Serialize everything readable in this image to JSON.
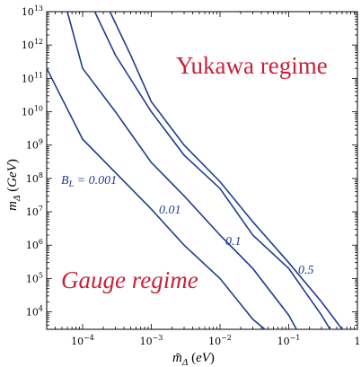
{
  "chart_data": {
    "type": "line",
    "xscale": "log",
    "yscale": "log",
    "xlim": [
      3e-05,
      1
    ],
    "ylim": [
      3000,
      10000000000000
    ],
    "xlabel": "m̃Δ (eV)",
    "ylabel": "mΔ (GeV)",
    "x_ticks": [
      {
        "value": 0.0001,
        "base": "10",
        "exp": "−4"
      },
      {
        "value": 0.001,
        "base": "10",
        "exp": "−3"
      },
      {
        "value": 0.01,
        "base": "10",
        "exp": "−2"
      },
      {
        "value": 0.1,
        "base": "10",
        "exp": "−1"
      },
      {
        "value": 1,
        "base": "1",
        "exp": ""
      }
    ],
    "y_ticks": [
      {
        "value": 10000,
        "base": "10",
        "exp": "4"
      },
      {
        "value": 100000,
        "base": "10",
        "exp": "5"
      },
      {
        "value": 1000000,
        "base": "10",
        "exp": "6"
      },
      {
        "value": 10000000,
        "base": "10",
        "exp": "7"
      },
      {
        "value": 100000000,
        "base": "10",
        "exp": "8"
      },
      {
        "value": 1000000000,
        "base": "10",
        "exp": "9"
      },
      {
        "value": 10000000000,
        "base": "10",
        "exp": "10"
      },
      {
        "value": 100000000000,
        "base": "10",
        "exp": "11"
      },
      {
        "value": 1000000000000,
        "base": "10",
        "exp": "12"
      },
      {
        "value": 10000000000000,
        "base": "10",
        "exp": "13"
      }
    ],
    "series": [
      {
        "name": "B_L = 0.001",
        "points": [
          [
            3e-05,
            200000000000
          ],
          [
            0.0001,
            1500000000
          ],
          [
            0.0003,
            150000000
          ],
          [
            0.001,
            12000000
          ],
          [
            0.003,
            1000000
          ],
          [
            0.01,
            100000
          ],
          [
            0.03,
            6000
          ],
          [
            0.045,
            3000
          ]
        ]
      },
      {
        "name": "0.01",
        "points": [
          [
            6e-05,
            10000000000000
          ],
          [
            0.0001,
            200000000000
          ],
          [
            0.0003,
            10000000000
          ],
          [
            0.001,
            300000000
          ],
          [
            0.003,
            30000000
          ],
          [
            0.01,
            2000000
          ],
          [
            0.03,
            200000
          ],
          [
            0.1,
            8000
          ],
          [
            0.13,
            3000
          ]
        ]
      },
      {
        "name": "0.1",
        "points": [
          [
            0.00015,
            10000000000000
          ],
          [
            0.0003,
            500000000000
          ],
          [
            0.001,
            10000000000
          ],
          [
            0.003,
            500000000
          ],
          [
            0.01,
            50000000
          ],
          [
            0.03,
            2000000
          ],
          [
            0.1,
            200000
          ],
          [
            0.3,
            8000
          ],
          [
            0.4,
            3000
          ]
        ]
      },
      {
        "name": "0.5",
        "points": [
          [
            0.00025,
            10000000000000
          ],
          [
            0.0005,
            500000000000
          ],
          [
            0.001,
            20000000000
          ],
          [
            0.003,
            1000000000
          ],
          [
            0.01,
            80000000
          ],
          [
            0.03,
            5000000
          ],
          [
            0.1,
            300000
          ],
          [
            0.3,
            20000
          ],
          [
            0.6,
            3000
          ]
        ]
      }
    ],
    "annotations": {
      "bl_prefix": "B",
      "bl_sub": "L",
      "bl_value": " = 0.001",
      "label_001": "0.01",
      "label_01": "0.1",
      "label_05": "0.5",
      "yukawa": "Yukawa regime",
      "gauge": "Gauge regime"
    },
    "line_color": "#1f3c8f",
    "annotation_color": "#c8213b",
    "grid": false
  }
}
